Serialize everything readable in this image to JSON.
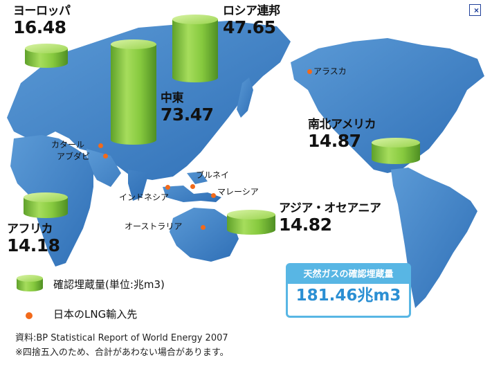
{
  "regions": {
    "europe": {
      "name": "ヨーロッパ",
      "value": "16.48"
    },
    "russia": {
      "name": "ロシア連邦",
      "value": "47.65"
    },
    "middle_east": {
      "name": "中東",
      "value": "73.47"
    },
    "america": {
      "name": "南北アメリカ",
      "value": "14.87"
    },
    "africa": {
      "name": "アフリカ",
      "value": "14.18"
    },
    "asia_oceania": {
      "name": "アジア・オセアニア",
      "value": "14.82"
    }
  },
  "places": {
    "qatar": "カタール",
    "abudhabi": "アブダビ",
    "alaska": "アラスカ",
    "brunei": "ブルネイ",
    "indonesia": "インドネシア",
    "malaysia": "マレーシア",
    "australia": "オーストラリア"
  },
  "legend": {
    "reserves": "確認埋蔵量(単位:兆m3)",
    "lng": "日本のLNG輸入先"
  },
  "total": {
    "title": "天然ガスの確認埋蔵量",
    "value": "181.46兆m3"
  },
  "source": "資料:BP Statistical Report of World Energy 2007",
  "note": "※四捨五入のため、合計があわない場合があります。",
  "close_label": "×",
  "colors": {
    "land": "#3e7fc4",
    "cylinder": "#7cc23a",
    "dot": "#f26a1b",
    "box_border": "#58b6e4",
    "total_text": "#2b8fd3"
  }
}
